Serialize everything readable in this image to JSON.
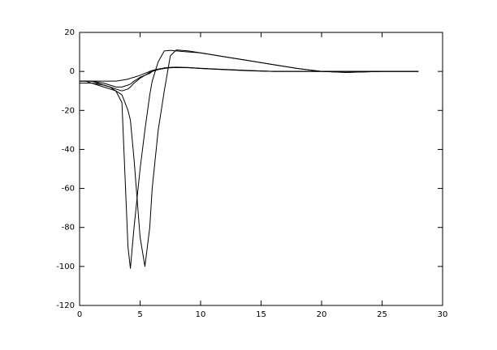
{
  "chart_data": {
    "type": "line",
    "x": [
      0,
      0.5,
      1,
      1.5,
      2,
      2.5,
      3,
      3.5,
      4,
      4.2,
      4.5,
      5,
      5.4,
      5.8,
      6,
      6.5,
      7,
      7.5,
      8,
      9,
      10,
      12,
      14,
      16,
      18,
      20,
      22,
      25,
      28
    ],
    "series": [
      {
        "color": "#000000",
        "values": [
          -5,
          -5,
          -5,
          -6,
          -7,
          -8,
          -10,
          -16,
          -90,
          -101,
          -80,
          -50,
          -30,
          -12,
          -5,
          5,
          10.5,
          10.8,
          10.5,
          10,
          9.5,
          7.5,
          5.5,
          3.5,
          1.5,
          0,
          -0.5,
          0,
          0
        ]
      },
      {
        "color": "#000000",
        "values": [
          -5,
          -5,
          -6,
          -7,
          -8,
          -9,
          -10,
          -12,
          -20,
          -25,
          -45,
          -85,
          -100,
          -80,
          -60,
          -30,
          -10,
          8,
          11,
          10.5,
          9.5,
          7.5,
          5.5,
          3.5,
          1.5,
          0,
          -0.5,
          0,
          0
        ]
      },
      {
        "color": "#000000",
        "values": [
          -5,
          -5,
          -5,
          -5.5,
          -6,
          -7,
          -8,
          -8,
          -7,
          -6.5,
          -5,
          -3,
          -2,
          -1,
          0,
          1,
          1.5,
          2,
          2,
          2,
          1.5,
          1,
          0.5,
          0,
          0,
          0,
          0,
          0,
          0
        ]
      },
      {
        "color": "#000000",
        "values": [
          -5,
          -5,
          -5,
          -5,
          -5,
          -5,
          -5,
          -4.5,
          -4,
          -3.5,
          -3,
          -2,
          -1,
          0,
          0.5,
          1.2,
          1.8,
          2.1,
          2.2,
          2,
          1.6,
          1,
          0.4,
          0,
          0,
          0,
          0,
          0,
          0
        ]
      },
      {
        "color": "#000000",
        "values": [
          -6,
          -6,
          -6,
          -6.5,
          -7,
          -8,
          -9,
          -10,
          -9,
          -8,
          -6,
          -3.5,
          -2,
          -0.5,
          0,
          1,
          1.6,
          1.9,
          2,
          1.9,
          1.5,
          0.9,
          0.3,
          0,
          0,
          0,
          0,
          0,
          0
        ]
      }
    ],
    "xlim": [
      0,
      30
    ],
    "xticks": [
      0,
      5,
      10,
      15,
      20,
      25,
      30
    ],
    "ylim": [
      -120,
      20
    ],
    "yticks": [
      -120,
      -100,
      -80,
      -60,
      -40,
      -20,
      0,
      20
    ]
  }
}
